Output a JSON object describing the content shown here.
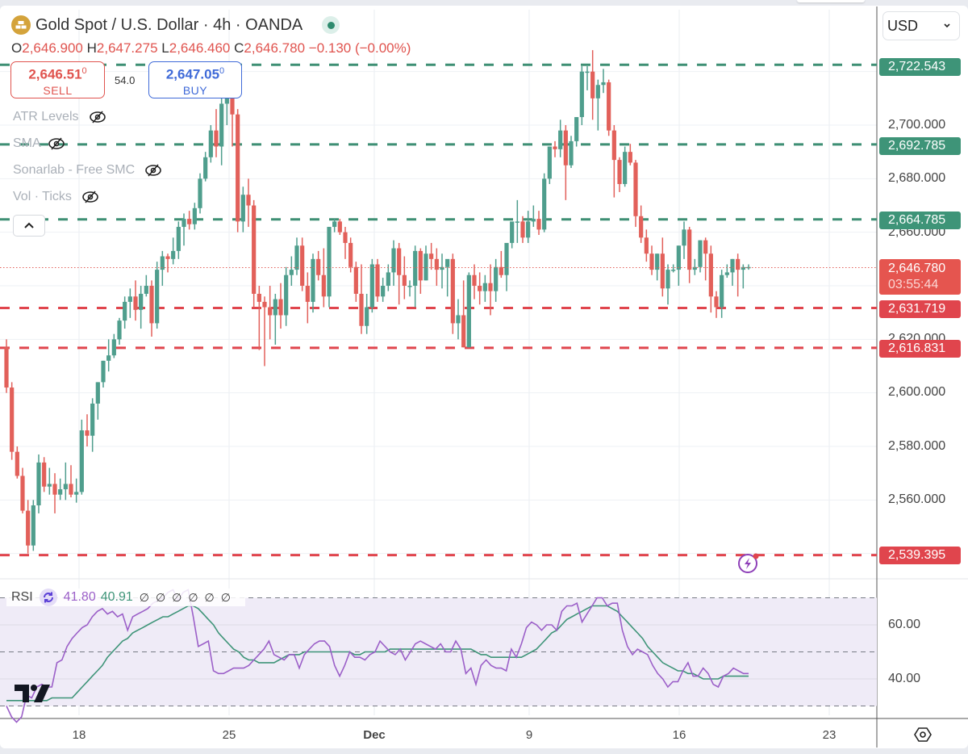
{
  "header": {
    "symbol_title": "Gold Spot / U.S. Dollar · 4h · OANDA",
    "symbol_icon": "gold-bars-icon",
    "market_status": "open",
    "ohlc": {
      "o_label": "O",
      "o": "2,646.900",
      "h_label": "H",
      "h": "2,647.275",
      "l_label": "L",
      "l": "2,646.460",
      "c_label": "C",
      "c": "2,646.780",
      "change": "−0.130 (−0.00%)"
    }
  },
  "trade": {
    "sell_price_main": "2,646.51",
    "sell_price_sup": "0",
    "sell_label": "SELL",
    "spread": "54.0",
    "buy_price_main": "2,647.05",
    "buy_price_sup": "0",
    "buy_label": "BUY"
  },
  "indicators": [
    {
      "label": "ATR Levels",
      "visible": false
    },
    {
      "label": "SMA",
      "visible": false
    },
    {
      "label": "Sonarlab - Free SMC",
      "visible": false
    },
    {
      "label": "Vol · Ticks",
      "visible": false
    }
  ],
  "currency_select": {
    "value": "USD"
  },
  "colors": {
    "up": "#4f9e8d",
    "down": "#e2605a",
    "resistance_line": "#3e8f74",
    "support_line": "#e0454d",
    "rsi": "#9b5fc8",
    "rsi_ma": "#3e9478",
    "rsi_band": "#efebf7"
  },
  "price_axis": {
    "ticks": [
      "2,700.000",
      "2,680.000",
      "2,660.000",
      "2,620.000",
      "2,600.000",
      "2,580.000",
      "2,560.000"
    ],
    "current_price": "2,646.780",
    "countdown": "03:55:44",
    "levels": [
      {
        "price": "2,722.543",
        "type": "resistance"
      },
      {
        "price": "2,692.785",
        "type": "resistance"
      },
      {
        "price": "2,664.785",
        "type": "resistance"
      },
      {
        "price": "2,631.719",
        "type": "support"
      },
      {
        "price": "2,616.831",
        "type": "support"
      },
      {
        "price": "2,539.395",
        "type": "support"
      }
    ]
  },
  "rsi_panel": {
    "label": "RSI",
    "value": "41.80",
    "ma_value": "40.91",
    "extra_values": [
      "∅",
      "∅",
      "∅",
      "∅",
      "∅",
      "∅"
    ],
    "axis_ticks": [
      "60.00",
      "40.00"
    ]
  },
  "time_axis": {
    "labels": [
      "18",
      "25",
      "Dec",
      "9",
      "16",
      "23"
    ]
  },
  "chart_data": {
    "type": "candlestick",
    "title": "Gold Spot / U.S. Dollar · 4h · OANDA",
    "xlabel": "",
    "ylabel": "USD",
    "x_ticks": [
      "18",
      "25",
      "Dec",
      "9",
      "16",
      "23"
    ],
    "ylim": [
      2530,
      2728
    ],
    "horizontal_levels": [
      2722.543,
      2692.785,
      2664.785,
      2631.719,
      2616.831,
      2539.395
    ],
    "last": {
      "open": 2646.9,
      "high": 2647.275,
      "low": 2646.46,
      "close": 2646.78
    },
    "candles_ohlc": [
      [
        2617,
        2620,
        2600,
        2602
      ],
      [
        2602,
        2604,
        2575,
        2578
      ],
      [
        2578,
        2580,
        2568,
        2569
      ],
      [
        2569,
        2572,
        2555,
        2556
      ],
      [
        2556,
        2560,
        2540,
        2543
      ],
      [
        2543,
        2560,
        2541,
        2558
      ],
      [
        2558,
        2577,
        2555,
        2574
      ],
      [
        2574,
        2576,
        2563,
        2565
      ],
      [
        2565,
        2572,
        2562,
        2566
      ],
      [
        2566,
        2570,
        2555,
        2562
      ],
      [
        2562,
        2568,
        2560,
        2564
      ],
      [
        2564,
        2574,
        2560,
        2566
      ],
      [
        2566,
        2573,
        2561,
        2562
      ],
      [
        2562,
        2568,
        2559,
        2563
      ],
      [
        2563,
        2590,
        2562,
        2586
      ],
      [
        2586,
        2592,
        2580,
        2584
      ],
      [
        2584,
        2598,
        2578,
        2596
      ],
      [
        2596,
        2604,
        2590,
        2604
      ],
      [
        2604,
        2612,
        2602,
        2612
      ],
      [
        2612,
        2620,
        2608,
        2614
      ],
      [
        2614,
        2622,
        2613,
        2620
      ],
      [
        2620,
        2628,
        2618,
        2627
      ],
      [
        2627,
        2636,
        2624,
        2634
      ],
      [
        2634,
        2639,
        2628,
        2636
      ],
      [
        2636,
        2642,
        2627,
        2631
      ],
      [
        2631,
        2640,
        2624,
        2637
      ],
      [
        2637,
        2644,
        2636,
        2640
      ],
      [
        2640,
        2642,
        2621,
        2626
      ],
      [
        2626,
        2649,
        2624,
        2646
      ],
      [
        2646,
        2653,
        2640,
        2651
      ],
      [
        2651,
        2652,
        2645,
        2650
      ],
      [
        2650,
        2658,
        2648,
        2653
      ],
      [
        2653,
        2664,
        2650,
        2662
      ],
      [
        2662,
        2667,
        2655,
        2665
      ],
      [
        2665,
        2668,
        2661,
        2663
      ],
      [
        2663,
        2671,
        2661,
        2669
      ],
      [
        2669,
        2682,
        2667,
        2680
      ],
      [
        2680,
        2690,
        2679,
        2688
      ],
      [
        2688,
        2700,
        2686,
        2698
      ],
      [
        2698,
        2706,
        2688,
        2692
      ],
      [
        2692,
        2710,
        2685,
        2708
      ],
      [
        2708,
        2718,
        2700,
        2714
      ],
      [
        2714,
        2716,
        2692,
        2704
      ],
      [
        2704,
        2706,
        2660,
        2664
      ],
      [
        2664,
        2677,
        2660,
        2674
      ],
      [
        2674,
        2680,
        2662,
        2670
      ],
      [
        2670,
        2672,
        2632,
        2637
      ],
      [
        2637,
        2640,
        2616,
        2634
      ],
      [
        2634,
        2636,
        2610,
        2632
      ],
      [
        2632,
        2640,
        2620,
        2629
      ],
      [
        2629,
        2637,
        2618,
        2635
      ],
      [
        2635,
        2641,
        2624,
        2629
      ],
      [
        2629,
        2647,
        2625,
        2644
      ],
      [
        2644,
        2651,
        2640,
        2646
      ],
      [
        2646,
        2658,
        2644,
        2655
      ],
      [
        2655,
        2658,
        2638,
        2640
      ],
      [
        2640,
        2645,
        2626,
        2634
      ],
      [
        2634,
        2652,
        2630,
        2650
      ],
      [
        2650,
        2653,
        2642,
        2644
      ],
      [
        2644,
        2654,
        2632,
        2636
      ],
      [
        2636,
        2662,
        2632,
        2662
      ],
      [
        2662,
        2665,
        2660,
        2664
      ],
      [
        2664,
        2665,
        2659,
        2660
      ],
      [
        2660,
        2662,
        2650,
        2656
      ],
      [
        2656,
        2658,
        2645,
        2647
      ],
      [
        2647,
        2649,
        2634,
        2637
      ],
      [
        2637,
        2648,
        2622,
        2625
      ],
      [
        2625,
        2637,
        2622,
        2632
      ],
      [
        2632,
        2650,
        2630,
        2648
      ],
      [
        2648,
        2650,
        2634,
        2636
      ],
      [
        2636,
        2643,
        2634,
        2640
      ],
      [
        2640,
        2648,
        2638,
        2645
      ],
      [
        2645,
        2657,
        2640,
        2654
      ],
      [
        2654,
        2656,
        2633,
        2644
      ],
      [
        2644,
        2651,
        2635,
        2640
      ],
      [
        2640,
        2642,
        2636,
        2640
      ],
      [
        2640,
        2655,
        2632,
        2653
      ],
      [
        2653,
        2654,
        2637,
        2642
      ],
      [
        2642,
        2655,
        2642,
        2652
      ],
      [
        2652,
        2656,
        2646,
        2650
      ],
      [
        2650,
        2654,
        2640,
        2646
      ],
      [
        2646,
        2652,
        2639,
        2647
      ],
      [
        2647,
        2649,
        2636,
        2650
      ],
      [
        2650,
        2652,
        2622,
        2626
      ],
      [
        2626,
        2635,
        2620,
        2629
      ],
      [
        2629,
        2642,
        2617,
        2617
      ],
      [
        2617,
        2645,
        2620,
        2644
      ],
      [
        2644,
        2648,
        2635,
        2640
      ],
      [
        2640,
        2645,
        2633,
        2638
      ],
      [
        2638,
        2644,
        2634,
        2641
      ],
      [
        2641,
        2648,
        2629,
        2638
      ],
      [
        2638,
        2650,
        2634,
        2647
      ],
      [
        2647,
        2653,
        2643,
        2644
      ],
      [
        2644,
        2651,
        2638,
        2656
      ],
      [
        2656,
        2660,
        2654,
        2664
      ],
      [
        2664,
        2672,
        2656,
        2664
      ],
      [
        2664,
        2666,
        2656,
        2658
      ],
      [
        2658,
        2668,
        2656,
        2664
      ],
      [
        2664,
        2670,
        2662,
        2665
      ],
      [
        2665,
        2668,
        2659,
        2661
      ],
      [
        2661,
        2682,
        2660,
        2680
      ],
      [
        2680,
        2692,
        2678,
        2692
      ],
      [
        2692,
        2694,
        2688,
        2691
      ],
      [
        2691,
        2702,
        2688,
        2698
      ],
      [
        2698,
        2700,
        2672,
        2685
      ],
      [
        2685,
        2696,
        2684,
        2694
      ],
      [
        2694,
        2703,
        2692,
        2703
      ],
      [
        2703,
        2722,
        2700,
        2720
      ],
      [
        2720,
        2722,
        2713,
        2720
      ],
      [
        2720,
        2728,
        2702,
        2710
      ],
      [
        2710,
        2717,
        2698,
        2715
      ],
      [
        2715,
        2721,
        2712,
        2716
      ],
      [
        2716,
        2717,
        2696,
        2698
      ],
      [
        2698,
        2700,
        2673,
        2687
      ],
      [
        2687,
        2688,
        2675,
        2678
      ],
      [
        2678,
        2692,
        2677,
        2690
      ],
      [
        2690,
        2693,
        2685,
        2686
      ],
      [
        2686,
        2687,
        2662,
        2666
      ],
      [
        2666,
        2670,
        2656,
        2658
      ],
      [
        2658,
        2661,
        2649,
        2652
      ],
      [
        2652,
        2655,
        2644,
        2646
      ],
      [
        2646,
        2652,
        2642,
        2652
      ],
      [
        2652,
        2658,
        2636,
        2639
      ],
      [
        2639,
        2648,
        2633,
        2646
      ],
      [
        2646,
        2648,
        2645,
        2646
      ],
      [
        2646,
        2655,
        2640,
        2655
      ],
      [
        2655,
        2664,
        2650,
        2661
      ],
      [
        2661,
        2662,
        2641,
        2646
      ],
      [
        2646,
        2650,
        2644,
        2647
      ],
      [
        2647,
        2657,
        2645,
        2657
      ],
      [
        2657,
        2658,
        2642,
        2652
      ],
      [
        2652,
        2655,
        2630,
        2636
      ],
      [
        2636,
        2638,
        2628,
        2632
      ],
      [
        2632,
        2646,
        2628,
        2644
      ],
      [
        2644,
        2648,
        2643,
        2645
      ],
      [
        2645,
        2650,
        2640,
        2650
      ],
      [
        2650,
        2652,
        2636,
        2646
      ],
      [
        2646,
        2648,
        2639,
        2647
      ],
      [
        2647,
        2648,
        2646,
        2647
      ]
    ],
    "rsi_series": [
      30,
      26,
      24,
      26,
      34,
      33,
      37,
      38,
      37,
      37,
      46,
      47,
      52,
      55,
      57,
      59,
      60,
      63,
      65,
      66,
      64,
      65,
      63,
      64,
      58,
      63,
      64,
      65,
      66,
      68,
      69,
      70,
      72,
      73,
      69,
      72,
      73,
      63,
      52,
      53,
      54,
      43,
      42,
      42,
      43,
      44,
      44,
      44,
      45,
      47,
      49,
      51,
      54,
      49,
      48,
      47,
      49,
      49,
      44,
      49,
      51,
      53,
      54,
      54,
      52,
      45,
      41,
      45,
      50,
      48,
      48,
      47,
      49,
      50,
      54,
      52,
      50,
      49,
      51,
      47,
      50,
      53,
      54,
      53,
      52,
      51,
      53,
      50,
      50,
      54,
      51,
      42,
      44,
      38,
      45,
      47,
      45,
      44,
      44,
      43,
      51,
      48,
      53,
      59,
      61,
      60,
      58,
      60,
      60,
      58,
      65,
      67,
      67,
      68,
      61,
      64,
      67,
      70,
      70,
      67,
      68,
      68,
      58,
      52,
      49,
      51,
      50,
      49,
      45,
      42,
      40,
      37,
      39,
      39,
      43,
      46,
      41,
      41,
      44,
      42,
      38,
      37,
      41,
      42,
      44,
      43,
      42,
      42
    ],
    "rsi_ma_series": [
      32,
      32,
      32,
      32,
      32,
      32,
      32,
      32,
      32,
      33,
      33,
      33,
      33,
      33,
      35,
      37,
      39,
      41,
      43,
      45,
      48,
      50,
      52,
      54,
      55,
      57,
      58,
      59,
      60,
      61,
      62,
      63,
      63,
      64,
      65,
      66,
      67,
      67,
      66,
      64,
      62,
      60,
      57,
      55,
      53,
      51,
      50,
      48,
      47,
      47,
      46,
      46,
      46,
      46,
      47,
      48,
      49,
      49,
      49,
      50,
      50,
      50,
      50,
      50,
      50,
      50,
      50,
      50,
      50,
      49,
      49,
      50,
      50,
      50,
      50,
      50,
      51,
      51,
      51,
      51,
      51,
      51,
      51,
      51,
      51,
      51,
      51,
      51,
      51,
      51,
      51,
      51,
      51,
      50,
      49,
      49,
      48,
      48,
      48,
      48,
      48,
      48,
      48,
      49,
      50,
      51,
      53,
      55,
      57,
      58,
      60,
      62,
      63,
      64,
      65,
      66,
      67,
      67,
      67,
      67,
      66,
      65,
      63,
      61,
      59,
      57,
      55,
      52,
      50,
      48,
      46,
      45,
      44,
      43,
      43,
      42,
      42,
      41,
      40,
      40,
      40,
      40,
      41,
      41,
      41,
      41,
      41,
      41
    ],
    "rsi_levels": {
      "upper": 70,
      "middle": 50,
      "lower": 30
    },
    "rsi_ylim": [
      24,
      76
    ]
  }
}
